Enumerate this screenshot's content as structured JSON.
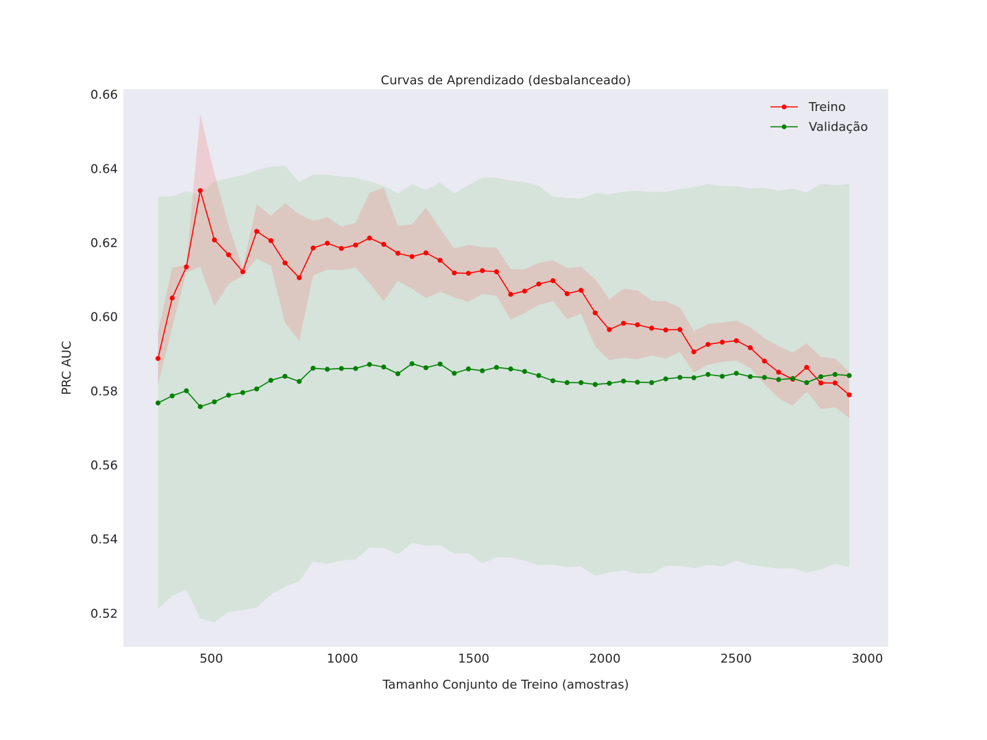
{
  "chart_data": {
    "type": "line",
    "title": "Curvas de Aprendizado (desbalanceado)",
    "xlabel": "Tamanho Conjunto de Treino (amostras)",
    "ylabel": "PRC AUC",
    "xlim": [
      165,
      3080
    ],
    "ylim": [
      0.511,
      0.6615
    ],
    "xticks": [
      500,
      1000,
      1500,
      2000,
      2500,
      3000
    ],
    "xtick_labels": [
      "500",
      "1000",
      "1500",
      "2000",
      "2500",
      "3000"
    ],
    "yticks": [
      0.52,
      0.54,
      0.56,
      0.58,
      0.6,
      0.62,
      0.64,
      0.66
    ],
    "ytick_labels": [
      "0.52",
      "0.54",
      "0.56",
      "0.58",
      "0.60",
      "0.62",
      "0.64",
      "0.66"
    ],
    "grid": false,
    "legend_position": "top-right",
    "x": [
      297,
      351,
      405,
      458,
      512,
      566,
      620,
      673,
      727,
      781,
      835,
      888,
      942,
      996,
      1050,
      1103,
      1157,
      1211,
      1265,
      1318,
      1372,
      1426,
      1480,
      1533,
      1587,
      1641,
      1694,
      1748,
      1802,
      1856,
      1909,
      1963,
      2017,
      2071,
      2124,
      2178,
      2232,
      2286,
      2339,
      2393,
      2447,
      2501,
      2554,
      2608,
      2662,
      2716,
      2769,
      2823,
      2877,
      2931
    ],
    "series": [
      {
        "name": "Treino",
        "color": "#ff0000",
        "band_color": "#f08080",
        "values": [
          0.5888,
          0.6051,
          0.6135,
          0.6341,
          0.6208,
          0.6168,
          0.6122,
          0.6231,
          0.6206,
          0.6146,
          0.6106,
          0.6186,
          0.6199,
          0.6185,
          0.6194,
          0.6213,
          0.6196,
          0.6172,
          0.6163,
          0.6173,
          0.6153,
          0.6119,
          0.6118,
          0.6125,
          0.6122,
          0.6061,
          0.607,
          0.6089,
          0.6098,
          0.6063,
          0.6072,
          0.6011,
          0.5966,
          0.5983,
          0.5979,
          0.597,
          0.5965,
          0.5966,
          0.5906,
          0.5926,
          0.5932,
          0.5936,
          0.5917,
          0.5881,
          0.5851,
          0.5832,
          0.5864,
          0.5822,
          0.5822,
          0.579
        ],
        "lower": [
          0.5818,
          0.5971,
          0.6121,
          0.6135,
          0.6029,
          0.6089,
          0.6112,
          0.6158,
          0.6139,
          0.5985,
          0.5935,
          0.6112,
          0.6128,
          0.6126,
          0.6134,
          0.6091,
          0.6043,
          0.6098,
          0.6076,
          0.6051,
          0.6068,
          0.6053,
          0.6041,
          0.6062,
          0.6057,
          0.5993,
          0.6011,
          0.6032,
          0.6043,
          0.5994,
          0.6009,
          0.592,
          0.5884,
          0.589,
          0.5886,
          0.5896,
          0.5888,
          0.5906,
          0.585,
          0.5871,
          0.5879,
          0.5882,
          0.5862,
          0.5819,
          0.5781,
          0.576,
          0.5799,
          0.5752,
          0.5756,
          0.5728
        ],
        "upper": [
          0.5958,
          0.6133,
          0.6141,
          0.6547,
          0.6387,
          0.6247,
          0.6132,
          0.6304,
          0.6273,
          0.6307,
          0.6277,
          0.6259,
          0.627,
          0.6244,
          0.6254,
          0.6335,
          0.6349,
          0.6246,
          0.625,
          0.6295,
          0.6238,
          0.6185,
          0.6195,
          0.6188,
          0.6187,
          0.6129,
          0.6129,
          0.6146,
          0.6153,
          0.6132,
          0.6135,
          0.6102,
          0.6048,
          0.6076,
          0.6072,
          0.6044,
          0.6042,
          0.6026,
          0.5962,
          0.5981,
          0.5985,
          0.599,
          0.5972,
          0.5943,
          0.5921,
          0.5904,
          0.5929,
          0.5892,
          0.5888,
          0.5852
        ]
      },
      {
        "name": "Validação",
        "color": "#008000",
        "band_color": "#b2d8b2",
        "values": [
          0.5768,
          0.5787,
          0.5801,
          0.5758,
          0.5771,
          0.5789,
          0.5796,
          0.5806,
          0.5829,
          0.584,
          0.5826,
          0.5862,
          0.5859,
          0.5861,
          0.5861,
          0.5872,
          0.5865,
          0.5847,
          0.5874,
          0.5863,
          0.5873,
          0.5848,
          0.586,
          0.5855,
          0.5864,
          0.586,
          0.5853,
          0.5842,
          0.5828,
          0.5823,
          0.5823,
          0.5818,
          0.5821,
          0.5827,
          0.5824,
          0.5823,
          0.5833,
          0.5837,
          0.5836,
          0.5845,
          0.584,
          0.5848,
          0.5839,
          0.5837,
          0.5831,
          0.5834,
          0.5823,
          0.5839,
          0.5845,
          0.5842
        ],
        "lower": [
          0.5212,
          0.5248,
          0.5264,
          0.5186,
          0.5176,
          0.5204,
          0.5209,
          0.5216,
          0.5251,
          0.5272,
          0.5287,
          0.534,
          0.5334,
          0.5343,
          0.5346,
          0.5378,
          0.5376,
          0.536,
          0.539,
          0.5383,
          0.5384,
          0.5362,
          0.5363,
          0.5335,
          0.5352,
          0.5351,
          0.5342,
          0.533,
          0.5331,
          0.5325,
          0.5327,
          0.5302,
          0.5311,
          0.5316,
          0.5307,
          0.5309,
          0.5328,
          0.5329,
          0.5322,
          0.5331,
          0.5327,
          0.5343,
          0.5331,
          0.5326,
          0.5321,
          0.5322,
          0.531,
          0.5319,
          0.5334,
          0.5325
        ],
        "upper": [
          0.6324,
          0.6326,
          0.6339,
          0.633,
          0.6366,
          0.6374,
          0.6383,
          0.6396,
          0.6406,
          0.6408,
          0.6364,
          0.6384,
          0.6384,
          0.6379,
          0.6376,
          0.6366,
          0.6354,
          0.6334,
          0.6358,
          0.6343,
          0.6362,
          0.6334,
          0.6356,
          0.6376,
          0.6376,
          0.6368,
          0.6364,
          0.6354,
          0.6325,
          0.6321,
          0.632,
          0.6334,
          0.6331,
          0.6338,
          0.6341,
          0.6337,
          0.6338,
          0.6345,
          0.635,
          0.6359,
          0.6353,
          0.6353,
          0.6347,
          0.6348,
          0.6341,
          0.6346,
          0.6336,
          0.6359,
          0.6356,
          0.6359
        ]
      }
    ]
  }
}
